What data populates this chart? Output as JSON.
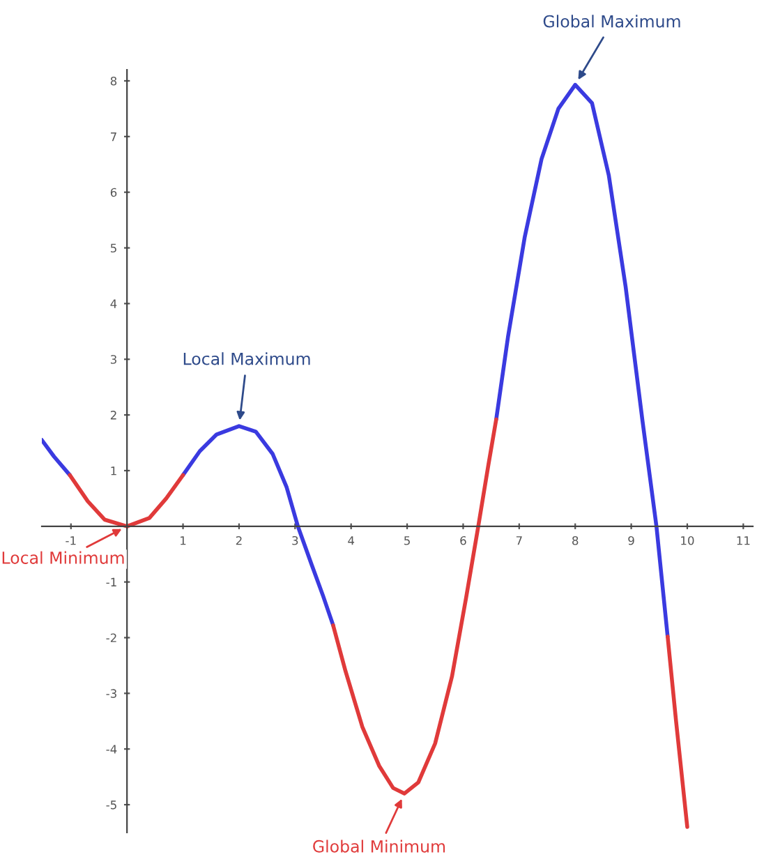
{
  "chart_data": {
    "type": "line",
    "xlim": [
      -1.52,
      11.17
    ],
    "ylim": [
      -5.5,
      8.2
    ],
    "xticks": [
      -1,
      {
        "value": 0,
        "label": null
      },
      1,
      2,
      3,
      4,
      5,
      6,
      7,
      8,
      9,
      10,
      11
    ],
    "yticks": [
      -5,
      -4,
      -3,
      -2,
      -1,
      {
        "value": 0,
        "label": null
      },
      1,
      2,
      3,
      4,
      5,
      6,
      7,
      8
    ],
    "grid": false,
    "legend": false,
    "marker": "none",
    "line_style": "solid",
    "series": [
      {
        "color": "#3a3ae0",
        "x": [
          -1.52,
          -1.3,
          -1.02,
          null,
          1.0,
          1.3,
          1.6,
          2.0,
          2.3,
          2.6,
          2.85,
          3.05,
          3.3,
          3.5,
          3.68,
          null,
          6.59,
          6.8,
          7.1,
          7.4,
          7.7,
          8.0,
          8.3,
          8.6,
          8.9,
          9.2,
          9.45,
          9.65
        ],
        "values": [
          1.55,
          1.25,
          0.92,
          null,
          0.92,
          1.35,
          1.65,
          1.8,
          1.7,
          1.3,
          0.7,
          0.0,
          -0.7,
          -1.25,
          -1.78,
          null,
          1.92,
          3.4,
          5.2,
          6.6,
          7.5,
          7.93,
          7.6,
          6.3,
          4.3,
          1.9,
          0.0,
          -1.98
        ]
      },
      {
        "color": "#e03a3a",
        "x": [
          -1.02,
          -0.7,
          -0.4,
          0.0,
          0.4,
          0.7,
          1.0,
          null,
          3.68,
          3.9,
          4.2,
          4.5,
          4.75,
          4.95,
          5.2,
          5.5,
          5.8,
          6.05,
          6.27,
          6.45,
          6.59,
          null,
          9.65,
          9.8,
          10.0
        ],
        "values": [
          0.92,
          0.45,
          0.12,
          0.0,
          0.15,
          0.5,
          0.92,
          null,
          -1.78,
          -2.6,
          -3.6,
          -4.3,
          -4.7,
          -4.8,
          -4.6,
          -3.9,
          -2.7,
          -1.3,
          0.0,
          1.1,
          1.92,
          null,
          -1.98,
          -3.5,
          -5.4
        ]
      }
    ],
    "annotations": [
      {
        "text": "Local Maximum",
        "x": 2.0,
        "y": 1.8
      },
      {
        "text": "Global Maximum",
        "x": 8.0,
        "y": 7.93
      },
      {
        "text": "Local Minimum",
        "x": 0.0,
        "y": 0.0
      },
      {
        "text": "Global Minimum",
        "x": 4.95,
        "y": -4.8
      }
    ]
  }
}
